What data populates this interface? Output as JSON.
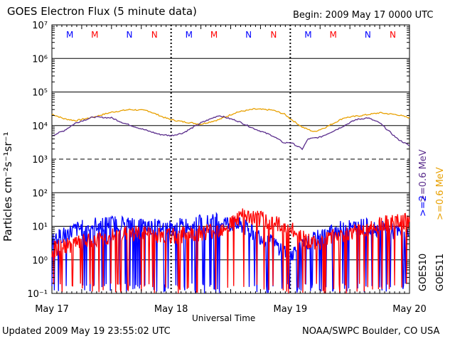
{
  "header": {
    "title": "GOES Electron Flux (5 minute data)",
    "begin": "Begin: 2009 May 17 0000 UTC"
  },
  "footer": {
    "updated": "Updated 2009 May 19 23:55:02 UTC",
    "credit": "NOAA/SWPC Boulder, CO USA"
  },
  "colors": {
    "goes10_high": "#0000ff",
    "goes11_high": "#ff0000",
    "goes10_low": "#5a2d8c",
    "goes11_low": "#e8a000",
    "marker_M_blue": "#0000ff",
    "marker_M_red": "#ff0000"
  },
  "chart_data": {
    "type": "line",
    "title": "GOES Electron Flux (5 minute data)",
    "xlabel": "Universal Time",
    "ylabel": "Particles cm⁻²s⁻¹sr⁻¹",
    "y_scale": "log",
    "ylim": [
      0.1,
      10000000
    ],
    "y_ticks": [
      "10⁻¹",
      "10⁰",
      "10¹",
      "10²",
      "10³",
      "10⁴",
      "10⁵",
      "10⁶",
      "10⁷"
    ],
    "x_ticks": [
      "May 17",
      "May 18",
      "May 19",
      "May 20"
    ],
    "xlim_days": [
      0,
      3
    ],
    "markers": [
      {
        "day": 0.15,
        "label": "M",
        "color": "#0000ff"
      },
      {
        "day": 0.36,
        "label": "M",
        "color": "#ff0000"
      },
      {
        "day": 0.65,
        "label": "N",
        "color": "#0000ff"
      },
      {
        "day": 0.86,
        "label": "N",
        "color": "#ff0000"
      },
      {
        "day": 1.15,
        "label": "M",
        "color": "#0000ff"
      },
      {
        "day": 1.36,
        "label": "M",
        "color": "#ff0000"
      },
      {
        "day": 1.65,
        "label": "N",
        "color": "#0000ff"
      },
      {
        "day": 1.86,
        "label": "N",
        "color": "#ff0000"
      },
      {
        "day": 2.15,
        "label": "M",
        "color": "#0000ff"
      },
      {
        "day": 2.36,
        "label": "M",
        "color": "#ff0000"
      },
      {
        "day": 2.65,
        "label": "N",
        "color": "#0000ff"
      },
      {
        "day": 2.86,
        "label": "N",
        "color": "#ff0000"
      }
    ],
    "series": [
      {
        "name": "GOES11 >=0.6 MeV",
        "color": "#e8a000",
        "x": [
          0,
          0.1,
          0.2,
          0.35,
          0.5,
          0.65,
          0.8,
          0.95,
          1.0,
          1.1,
          1.25,
          1.4,
          1.55,
          1.7,
          1.85,
          1.95,
          2.0,
          2.1,
          2.2,
          2.3,
          2.45,
          2.6,
          2.75,
          2.9,
          3.0
        ],
        "y": [
          22000,
          16000,
          14000,
          18000,
          25000,
          30000,
          28000,
          17000,
          15000,
          13000,
          11000,
          15000,
          25000,
          31000,
          29000,
          22000,
          16000,
          9000,
          6500,
          9000,
          17000,
          20000,
          24000,
          21000,
          17000
        ]
      },
      {
        "name": "GOES10 >=0.6 MeV",
        "color": "#5a2d8c",
        "x": [
          0,
          0.1,
          0.2,
          0.35,
          0.5,
          0.6,
          0.75,
          0.9,
          1.0,
          1.1,
          1.25,
          1.4,
          1.55,
          1.7,
          1.85,
          1.95,
          2.0,
          2.1,
          2.15,
          2.25,
          2.4,
          2.55,
          2.65,
          2.75,
          2.9,
          3.0
        ],
        "y": [
          5000,
          7000,
          12000,
          18000,
          17000,
          12000,
          8000,
          5500,
          5000,
          6000,
          12000,
          20000,
          14000,
          8000,
          5000,
          3000,
          3200,
          2000,
          4000,
          4500,
          8000,
          15000,
          17000,
          12000,
          4000,
          2500
        ]
      },
      {
        "name": "GOES10 >=2 MeV",
        "color": "#0000ff",
        "x": [
          0,
          0.2,
          0.4,
          0.6,
          0.8,
          1.0,
          1.2,
          1.4,
          1.6,
          1.8,
          2.0,
          2.2,
          2.4,
          2.6,
          2.8,
          3.0
        ],
        "y": [
          4,
          8,
          12,
          12,
          10,
          9,
          12,
          14,
          10,
          4,
          1.5,
          4,
          8,
          10,
          8,
          5
        ]
      },
      {
        "name": "GOES11 >=2 MeV",
        "color": "#ff0000",
        "x": [
          0,
          0.2,
          0.4,
          0.6,
          0.8,
          1.0,
          1.2,
          1.4,
          1.6,
          1.8,
          2.0,
          2.2,
          2.4,
          2.6,
          2.8,
          3.0
        ],
        "y": [
          2,
          3,
          4,
          6,
          6,
          5,
          6,
          8,
          20,
          15,
          8,
          3,
          5,
          8,
          12,
          14
        ]
      }
    ],
    "right_legend": {
      "low": ">=0.6  MeV",
      "high": ">=2",
      "goes10": "GOES10",
      "goes11": "GOES11"
    }
  }
}
